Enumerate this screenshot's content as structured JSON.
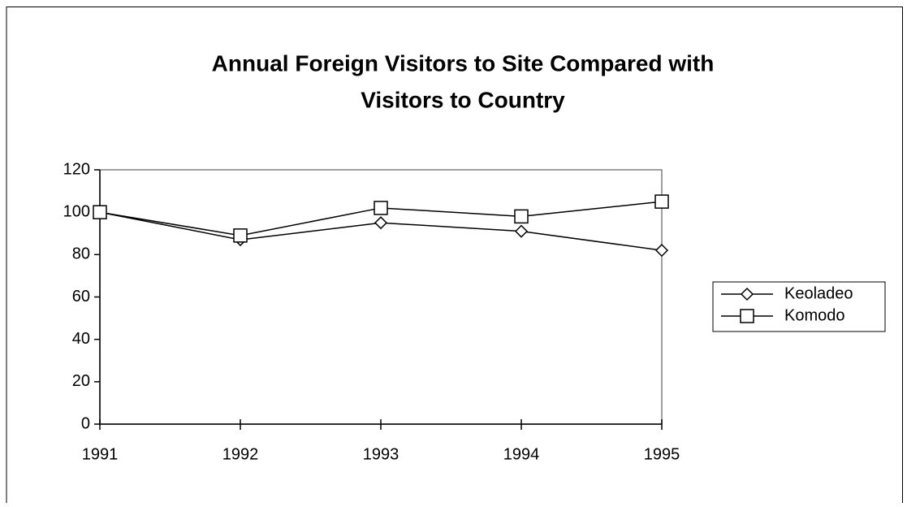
{
  "chart_data": {
    "type": "line",
    "title": [
      "Annual Foreign Visitors to Site Compared with",
      "Visitors to Country"
    ],
    "x": [
      1991,
      1992,
      1993,
      1994,
      1995
    ],
    "xlim": [
      1991,
      1995
    ],
    "xticks": [
      1991,
      1992,
      1993,
      1994,
      1995
    ],
    "ylim": [
      0,
      120
    ],
    "yticks": [
      0,
      20,
      40,
      60,
      80,
      100,
      120
    ],
    "grid": false,
    "legend": "right",
    "series": [
      {
        "name": "Keoladeo",
        "color": "#000000",
        "marker": "diamond",
        "values": [
          100,
          87,
          95,
          91,
          82
        ]
      },
      {
        "name": "Komodo",
        "color": "#000000",
        "marker": "square",
        "values": [
          100,
          89,
          102,
          98,
          105
        ]
      }
    ]
  }
}
